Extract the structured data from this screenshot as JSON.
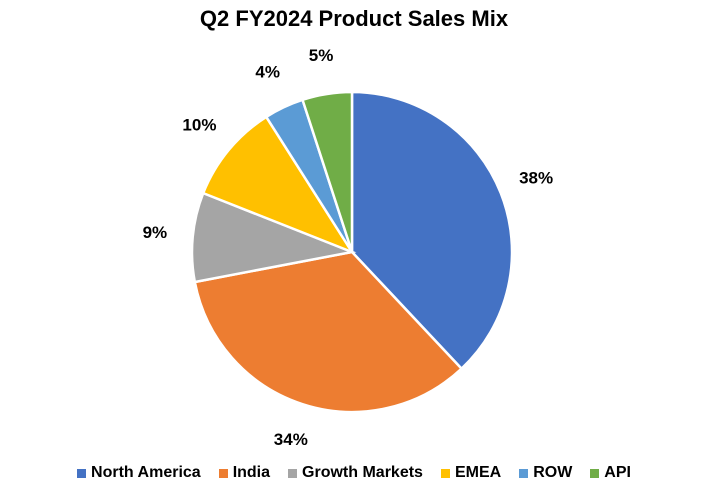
{
  "chart_data": {
    "type": "pie",
    "title": "Q2 FY2024 Product Sales Mix",
    "legend_position": "bottom",
    "slices": [
      {
        "name": "North America",
        "value": 38,
        "label": "38%",
        "color": "#4472C4"
      },
      {
        "name": "India",
        "value": 34,
        "label": "34%",
        "color": "#ED7D31"
      },
      {
        "name": "Growth Markets",
        "value": 9,
        "label": "9%",
        "color": "#A5A5A5"
      },
      {
        "name": "EMEA",
        "value": 10,
        "label": "10%",
        "color": "#FFC000"
      },
      {
        "name": "ROW",
        "value": 4,
        "label": "4%",
        "color": "#5B9BD5"
      },
      {
        "name": "API",
        "value": 5,
        "label": "5%",
        "color": "#70AD47"
      }
    ]
  }
}
